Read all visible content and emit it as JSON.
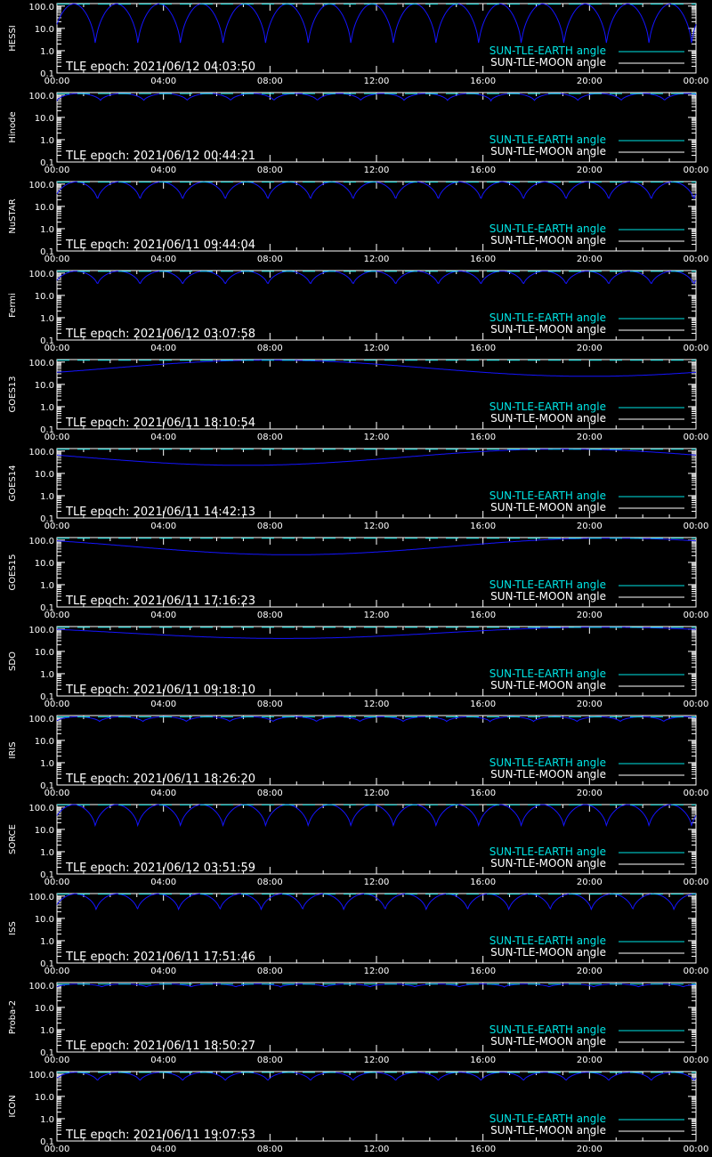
{
  "figure": {
    "background": "#000000",
    "axis_color": "#ffffff",
    "colors": {
      "earth": "#00e5e5",
      "moon": "#ffffff",
      "curve": "#1414ff"
    },
    "legend": {
      "earth_label": "SUN-TLE-EARTH angle",
      "moon_label": "SUN-TLE-MOON angle",
      "placement": "bottom-right"
    }
  },
  "chart_data": [
    {
      "type": "line",
      "satellite": "HESSI",
      "epoch_text": "TLE epoch: 2021/06/12 04:03:50",
      "x_ticks": [
        "00:00",
        "04:00",
        "08:00",
        "12:00",
        "16:00",
        "20:00",
        "00:00"
      ],
      "y_ticks": [
        "0.1",
        "1.0",
        "10.0",
        "100.0"
      ],
      "ylim": [
        0.1,
        130
      ],
      "yscale": "log",
      "xlim_hours": [
        0,
        24
      ],
      "curve": {
        "kind": "orbit",
        "period_hours": 1.6,
        "min": 1.5,
        "max": 125,
        "phase": 0.1
      }
    },
    {
      "type": "line",
      "satellite": "Hinode",
      "epoch_text": "TLE epoch: 2021/06/12 00:44:21",
      "x_ticks": [
        "00:00",
        "04:00",
        "08:00",
        "12:00",
        "16:00",
        "20:00",
        "00:00"
      ],
      "y_ticks": [
        "0.1",
        "1.0",
        "10.0",
        "100.0"
      ],
      "ylim": [
        0.1,
        130
      ],
      "yscale": "log",
      "xlim_hours": [
        0,
        24
      ],
      "curve": {
        "kind": "orbit",
        "period_hours": 1.63,
        "min": 55,
        "max": 118,
        "phase": 0.0
      }
    },
    {
      "type": "line",
      "satellite": "NuSTAR",
      "epoch_text": "TLE epoch: 2021/06/11 09:44:04",
      "x_ticks": [
        "00:00",
        "04:00",
        "08:00",
        "12:00",
        "16:00",
        "20:00",
        "00:00"
      ],
      "y_ticks": [
        "0.1",
        "1.0",
        "10.0",
        "100.0"
      ],
      "ylim": [
        0.1,
        130
      ],
      "yscale": "log",
      "xlim_hours": [
        0,
        24
      ],
      "curve": {
        "kind": "orbit",
        "period_hours": 1.6,
        "min": 18,
        "max": 125,
        "phase": 0.05
      }
    },
    {
      "type": "line",
      "satellite": "Fermi",
      "epoch_text": "TLE epoch: 2021/06/12 03:07:58",
      "x_ticks": [
        "00:00",
        "04:00",
        "08:00",
        "12:00",
        "16:00",
        "20:00",
        "00:00"
      ],
      "y_ticks": [
        "0.1",
        "1.0",
        "10.0",
        "100.0"
      ],
      "ylim": [
        0.1,
        130
      ],
      "yscale": "log",
      "xlim_hours": [
        0,
        24
      ],
      "curve": {
        "kind": "orbit",
        "period_hours": 1.6,
        "min": 28,
        "max": 122,
        "phase": 0.05
      }
    },
    {
      "type": "line",
      "satellite": "GOES13",
      "epoch_text": "TLE epoch: 2021/06/11 18:10:54",
      "x_ticks": [
        "00:00",
        "04:00",
        "08:00",
        "12:00",
        "16:00",
        "20:00",
        "00:00"
      ],
      "y_ticks": [
        "0.1",
        "1.0",
        "10.0",
        "100.0"
      ],
      "ylim": [
        0.1,
        130
      ],
      "yscale": "log",
      "xlim_hours": [
        0,
        24
      ],
      "curve": {
        "kind": "geo",
        "min_hour": 20,
        "min": 23,
        "max": 123
      }
    },
    {
      "type": "line",
      "satellite": "GOES14",
      "epoch_text": "TLE epoch: 2021/06/11 14:42:13",
      "x_ticks": [
        "00:00",
        "04:00",
        "08:00",
        "12:00",
        "16:00",
        "20:00",
        "00:00"
      ],
      "y_ticks": [
        "0.1",
        "1.0",
        "10.0",
        "100.0"
      ],
      "ylim": [
        0.1,
        130
      ],
      "yscale": "log",
      "xlim_hours": [
        0,
        24
      ],
      "curve": {
        "kind": "geo",
        "min_hour": 7,
        "min": 23,
        "max": 123
      }
    },
    {
      "type": "line",
      "satellite": "GOES15",
      "epoch_text": "TLE epoch: 2021/06/11 17:16:23",
      "x_ticks": [
        "00:00",
        "04:00",
        "08:00",
        "12:00",
        "16:00",
        "20:00",
        "00:00"
      ],
      "y_ticks": [
        "0.1",
        "1.0",
        "10.0",
        "100.0"
      ],
      "ylim": [
        0.1,
        130
      ],
      "yscale": "log",
      "xlim_hours": [
        0,
        24
      ],
      "curve": {
        "kind": "geo",
        "min_hour": 8.8,
        "min": 22,
        "max": 123
      }
    },
    {
      "type": "line",
      "satellite": "SDO",
      "epoch_text": "TLE epoch: 2021/06/11 09:18:10",
      "x_ticks": [
        "00:00",
        "04:00",
        "08:00",
        "12:00",
        "16:00",
        "20:00",
        "00:00"
      ],
      "y_ticks": [
        "0.1",
        "1.0",
        "10.0",
        "100.0"
      ],
      "ylim": [
        0.1,
        130
      ],
      "yscale": "log",
      "xlim_hours": [
        0,
        24
      ],
      "curve": {
        "kind": "geo",
        "min_hour": 8.5,
        "min": 38,
        "max": 122
      }
    },
    {
      "type": "line",
      "satellite": "IRIS",
      "epoch_text": "TLE epoch: 2021/06/11 18:26:20",
      "x_ticks": [
        "00:00",
        "04:00",
        "08:00",
        "12:00",
        "16:00",
        "20:00",
        "00:00"
      ],
      "y_ticks": [
        "0.1",
        "1.0",
        "10.0",
        "100.0"
      ],
      "ylim": [
        0.1,
        130
      ],
      "yscale": "log",
      "xlim_hours": [
        0,
        24
      ],
      "curve": {
        "kind": "orbit",
        "period_hours": 1.63,
        "min": 68,
        "max": 115,
        "phase": 0.02
      }
    },
    {
      "type": "line",
      "satellite": "SORCE",
      "epoch_text": "TLE epoch: 2021/06/12 03:51:59",
      "x_ticks": [
        "00:00",
        "04:00",
        "08:00",
        "12:00",
        "16:00",
        "20:00",
        "00:00"
      ],
      "y_ticks": [
        "0.1",
        "1.0",
        "10.0",
        "100.0"
      ],
      "ylim": [
        0.1,
        130
      ],
      "yscale": "log",
      "xlim_hours": [
        0,
        24
      ],
      "curve": {
        "kind": "orbit",
        "period_hours": 1.6,
        "min": 12,
        "max": 128,
        "phase": 0.1
      }
    },
    {
      "type": "line",
      "satellite": "ISS",
      "epoch_text": "TLE epoch: 2021/06/11 17:51:46",
      "x_ticks": [
        "00:00",
        "04:00",
        "08:00",
        "12:00",
        "16:00",
        "20:00",
        "00:00"
      ],
      "y_ticks": [
        "0.1",
        "1.0",
        "10.0",
        "100.0"
      ],
      "ylim": [
        0.1,
        130
      ],
      "yscale": "log",
      "xlim_hours": [
        0,
        24
      ],
      "curve": {
        "kind": "orbit",
        "period_hours": 1.55,
        "min": 22,
        "max": 125,
        "phase": 0.05
      }
    },
    {
      "type": "line",
      "satellite": "Proba-2",
      "epoch_text": "TLE epoch: 2021/06/11 18:50:27",
      "x_ticks": [
        "00:00",
        "04:00",
        "08:00",
        "12:00",
        "16:00",
        "20:00",
        "00:00"
      ],
      "y_ticks": [
        "0.1",
        "1.0",
        "10.0",
        "100.0"
      ],
      "ylim": [
        0.1,
        130
      ],
      "yscale": "log",
      "xlim_hours": [
        0,
        24
      ],
      "curve": {
        "kind": "orbit",
        "period_hours": 1.68,
        "min": 82,
        "max": 112,
        "phase": 0.0
      }
    },
    {
      "type": "line",
      "satellite": "ICON",
      "epoch_text": "TLE epoch: 2021/06/11 19:07:53",
      "x_ticks": [
        "00:00",
        "04:00",
        "08:00",
        "12:00",
        "16:00",
        "20:00",
        "00:00"
      ],
      "y_ticks": [
        "0.1",
        "1.0",
        "10.0",
        "100.0"
      ],
      "ylim": [
        0.1,
        130
      ],
      "yscale": "log",
      "xlim_hours": [
        0,
        24
      ],
      "curve": {
        "kind": "orbit",
        "period_hours": 1.6,
        "min": 48,
        "max": 120,
        "phase": 0.05
      }
    }
  ]
}
